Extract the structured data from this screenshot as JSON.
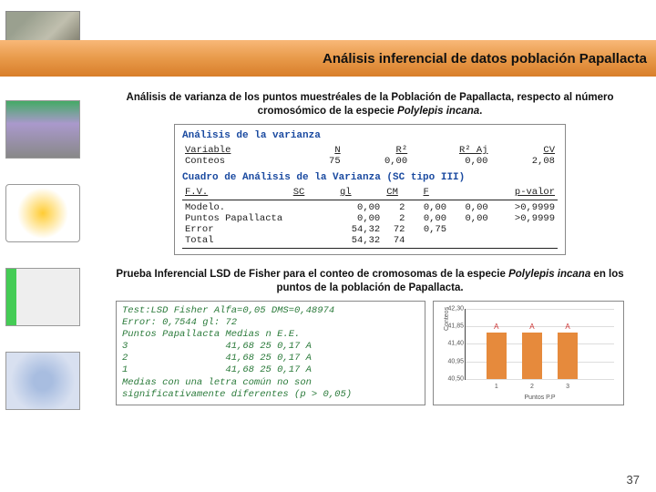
{
  "header": {
    "title": "Análisis inferencial de datos población Papallacta"
  },
  "caption1": {
    "pre": "Análisis de varianza de los puntos muestréales de la Población de Papallacta, respecto al número cromosómico de la especie ",
    "species": "Polylepis incana",
    "post": "."
  },
  "anova": {
    "title": "Análisis de la varianza",
    "hdr1": [
      "Variable",
      "N",
      "R²",
      "R² Aj",
      "CV"
    ],
    "row1": [
      "Conteos",
      "75",
      "0,00",
      "0,00",
      "2,08"
    ],
    "subtitle": "Cuadro de Análisis de la Varianza (SC tipo III)",
    "hdr2": [
      "F.V.",
      "SC",
      "gl",
      "CM",
      "F",
      "p-valor"
    ],
    "rows2": [
      [
        "Modelo.",
        "0,00",
        "2",
        "0,00",
        "0,00",
        ">0,9999"
      ],
      [
        "Puntos Papallacta",
        "0,00",
        "2",
        "0,00",
        "0,00",
        ">0,9999"
      ],
      [
        "Error",
        "54,32",
        "72",
        "0,75",
        "",
        ""
      ],
      [
        "Total",
        "54,32",
        "74",
        "",
        "",
        ""
      ]
    ]
  },
  "caption2": {
    "pre": "Prueba Inferencial LSD de Fisher para el conteo de cromosomas de la especie ",
    "species": "Polylepis incana",
    "post": " en los puntos de la población de Papallacta."
  },
  "lsd": {
    "line1": "Test:LSD Fisher Alfa=0,05 DMS=0,48974",
    "line2": "Error: 0,7544 gl: 72",
    "hdr": "Puntos Papallacta Medias n  E.E.",
    "rows": [
      "3                 41,68 25 0,17 A",
      "2                 41,68 25 0,17 A",
      "1                 41,68 25 0,17 A"
    ],
    "footer": "Medias con una letra común no son significativamente diferentes (p > 0,05)"
  },
  "chart": {
    "ylabel": "Conteos",
    "xlabel": "Puntos P.P",
    "ylim": [
      40.5,
      42.3
    ],
    "yticks": [
      40.5,
      40.95,
      41.4,
      41.85,
      42.3
    ],
    "ytick_labels": [
      "40,50",
      "40,95",
      "41,40",
      "41,85",
      "42,30"
    ],
    "categories": [
      "1",
      "2",
      "3"
    ],
    "values": [
      41.68,
      41.68,
      41.68
    ],
    "markers": [
      "A",
      "A",
      "A"
    ],
    "bar_color": "#e68a3c",
    "marker_color": "#c33",
    "grid_color": "#dddddd",
    "background": "#ffffff"
  },
  "page": "37"
}
